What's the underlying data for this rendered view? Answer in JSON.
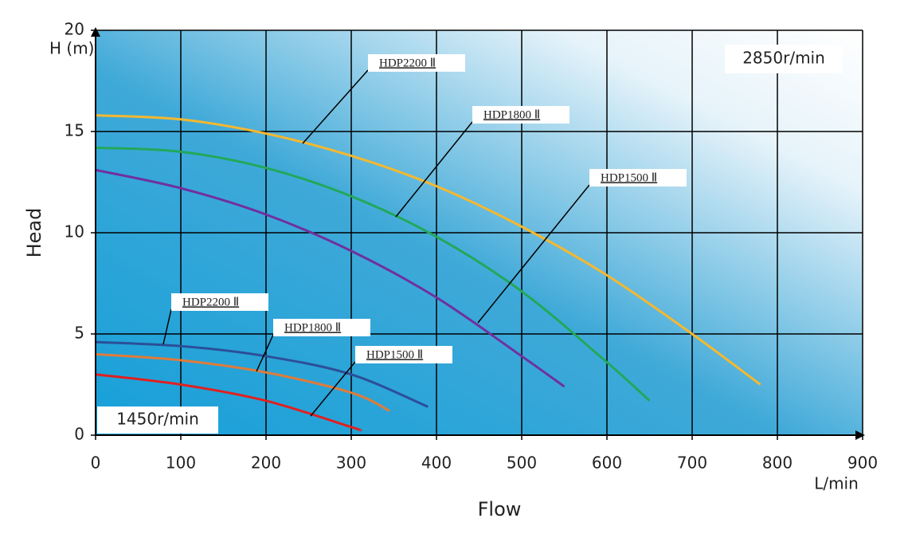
{
  "chart_data": {
    "type": "line",
    "y_label": "Head",
    "y_unit": "H (m)",
    "x_label": "Flow",
    "x_unit": "L/min",
    "annotations": [
      "2850r/min",
      "1450r/min"
    ],
    "xlim": [
      0,
      900
    ],
    "xticks": [
      0,
      100,
      200,
      300,
      400,
      500,
      600,
      700,
      800,
      900
    ],
    "ylim": [
      0,
      20
    ],
    "yticks": [
      0,
      5,
      10,
      15,
      20
    ],
    "grid": true,
    "series": [
      {
        "name": "HDP2200 Ⅱ",
        "color": "#f5b82e",
        "x": [
          0,
          100,
          200,
          300,
          400,
          500,
          600,
          700,
          780
        ],
        "values": [
          15.8,
          15.6,
          14.9,
          13.8,
          12.3,
          10.3,
          7.9,
          5.0,
          2.5
        ]
      },
      {
        "name": "HDP1800 Ⅱ",
        "color": "#22a85a",
        "x": [
          0,
          100,
          200,
          300,
          400,
          500,
          600,
          650
        ],
        "values": [
          14.2,
          14.0,
          13.2,
          11.8,
          9.8,
          7.1,
          3.6,
          1.7
        ]
      },
      {
        "name": "HDP1500 Ⅱ",
        "color": "#7030a0",
        "x": [
          0,
          100,
          200,
          300,
          400,
          500,
          550
        ],
        "values": [
          13.1,
          12.2,
          10.9,
          9.1,
          6.8,
          3.9,
          2.4
        ]
      },
      {
        "name": "HDP2200 Ⅱ",
        "color": "#2b4f98",
        "x": [
          0,
          100,
          200,
          300,
          390
        ],
        "values": [
          4.6,
          4.4,
          3.9,
          3.0,
          1.4
        ]
      },
      {
        "name": "HDP1800 Ⅱ",
        "color": "#e07b39",
        "x": [
          0,
          100,
          200,
          300,
          345
        ],
        "values": [
          4.0,
          3.7,
          3.1,
          2.1,
          1.2
        ]
      },
      {
        "name": "HDP1500 Ⅱ",
        "color": "#e02020",
        "x": [
          0,
          100,
          200,
          300,
          310
        ],
        "values": [
          3.0,
          2.5,
          1.7,
          0.4,
          0.25
        ]
      }
    ]
  }
}
